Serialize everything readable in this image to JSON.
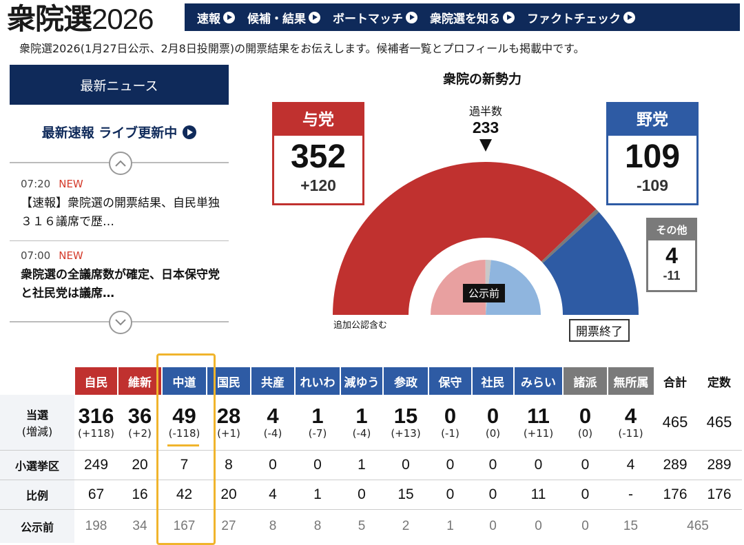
{
  "header": {
    "logo_main": "衆院選",
    "logo_year": "2026",
    "nav": [
      "速報",
      "候補・結果",
      "ボートマッチ",
      "衆院選を知る",
      "ファクトチェック"
    ],
    "subtitle": "衆院選2026(1月27日公示、2月8日投開票)の開票結果をお伝えします。候補者一覧とプロフィールも掲載中です。"
  },
  "news": {
    "header": "最新ニュース",
    "live_label": "最新速報 ライブ更新中",
    "items": [
      {
        "time": "07:20",
        "badge": "NEW",
        "text": "【速報】衆院選の開票結果、自民単独３１６議席で歴…"
      },
      {
        "time": "07:00",
        "badge": "NEW",
        "text": "衆院選の全議席数が確定、日本保守党と社民党は議席…"
      }
    ]
  },
  "chart": {
    "title": "衆院の新勢力",
    "majority_label": "過半数",
    "majority_value": "233",
    "ruling": {
      "label": "与党",
      "seats": "352",
      "change": "+120",
      "color": "#c0312f"
    },
    "opposition": {
      "label": "野党",
      "seats": "109",
      "change": "-109",
      "color": "#2e5ba4"
    },
    "other": {
      "label": "その他",
      "seats": "4",
      "change": "-11",
      "color": "#7a7a7a"
    },
    "inner_label": "公示前",
    "note": "追加公認含む",
    "status": "開票終了",
    "chart_data": {
      "type": "pie",
      "outer_ring": {
        "total": 465,
        "segments": [
          {
            "name": "与党",
            "value": 352
          },
          {
            "name": "その他",
            "value": 4
          },
          {
            "name": "野党",
            "value": 109
          }
        ]
      },
      "inner_ring_label": "公示前",
      "inner_ring": {
        "total": 465,
        "segments": [
          {
            "name": "与党",
            "value": 232
          },
          {
            "name": "その他",
            "value": 15
          },
          {
            "name": "野党",
            "value": 218
          }
        ]
      }
    }
  },
  "table": {
    "row_labels": {
      "won": "当選",
      "won_sub": "(増減)",
      "district": "小選挙区",
      "pr": "比例",
      "pre": "公示前"
    },
    "total_header": "合計",
    "capacity_header": "定数",
    "parties": [
      {
        "name": "自民",
        "color": "#c0312f",
        "won": "316",
        "diff": "(+118)",
        "district": "249",
        "pr": "67",
        "pre": "198"
      },
      {
        "name": "維新",
        "color": "#c0312f",
        "won": "36",
        "diff": "(+2)",
        "district": "20",
        "pr": "16",
        "pre": "34"
      },
      {
        "name": "中道",
        "color": "#2e5ba4",
        "won": "49",
        "diff": "(-118)",
        "district": "7",
        "pr": "42",
        "pre": "167"
      },
      {
        "name": "国民",
        "color": "#2e5ba4",
        "won": "28",
        "diff": "(+1)",
        "district": "8",
        "pr": "20",
        "pre": "27"
      },
      {
        "name": "共産",
        "color": "#2e5ba4",
        "won": "4",
        "diff": "(-4)",
        "district": "0",
        "pr": "4",
        "pre": "8"
      },
      {
        "name": "れいわ",
        "color": "#2e5ba4",
        "won": "1",
        "diff": "(-7)",
        "district": "0",
        "pr": "1",
        "pre": "8"
      },
      {
        "name": "減ゆう",
        "color": "#2e5ba4",
        "won": "1",
        "diff": "(-4)",
        "district": "1",
        "pr": "0",
        "pre": "5"
      },
      {
        "name": "参政",
        "color": "#2e5ba4",
        "won": "15",
        "diff": "(+13)",
        "district": "0",
        "pr": "15",
        "pre": "2"
      },
      {
        "name": "保守",
        "color": "#2e5ba4",
        "won": "0",
        "diff": "(-1)",
        "district": "0",
        "pr": "0",
        "pre": "1"
      },
      {
        "name": "社民",
        "color": "#2e5ba4",
        "won": "0",
        "diff": "(0)",
        "district": "0",
        "pr": "0",
        "pre": "0"
      },
      {
        "name": "みらい",
        "color": "#2e5ba4",
        "won": "11",
        "diff": "(+11)",
        "district": "0",
        "pr": "11",
        "pre": "0"
      },
      {
        "name": "諸派",
        "color": "#7a7a7a",
        "won": "0",
        "diff": "(0)",
        "district": "0",
        "pr": "0",
        "pre": "0"
      },
      {
        "name": "無所属",
        "color": "#7a7a7a",
        "won": "4",
        "diff": "(-11)",
        "district": "4",
        "pr": "-",
        "pre": "15"
      }
    ],
    "totals": {
      "won_total": "465",
      "won_cap": "465",
      "district_total": "289",
      "district_cap": "289",
      "pr_total": "176",
      "pr_cap": "176",
      "pre_total": "465"
    }
  }
}
